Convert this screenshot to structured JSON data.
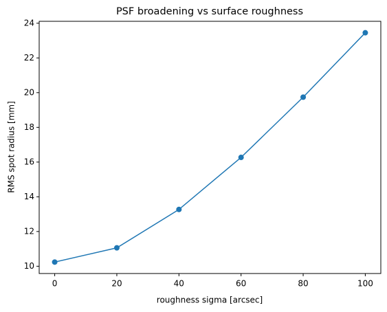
{
  "chart_data": {
    "type": "line",
    "title": "PSF broadening vs surface roughness",
    "x_label": "roughness sigma [arcsec]",
    "y_label": "RMS spot radius [mm]",
    "x": [
      0,
      20,
      40,
      60,
      80,
      100
    ],
    "series": [
      {
        "color": "#1f77b4",
        "values": [
          10.24,
          11.06,
          13.27,
          16.27,
          19.74,
          23.45
        ]
      }
    ],
    "xlim": [
      -5,
      105
    ],
    "xticks": [
      0,
      20,
      40,
      60,
      80,
      100
    ],
    "ylim": [
      9.58,
      24.11
    ],
    "yticks": [
      10,
      12,
      14,
      16,
      18,
      20,
      22,
      24
    ],
    "grid": false
  }
}
